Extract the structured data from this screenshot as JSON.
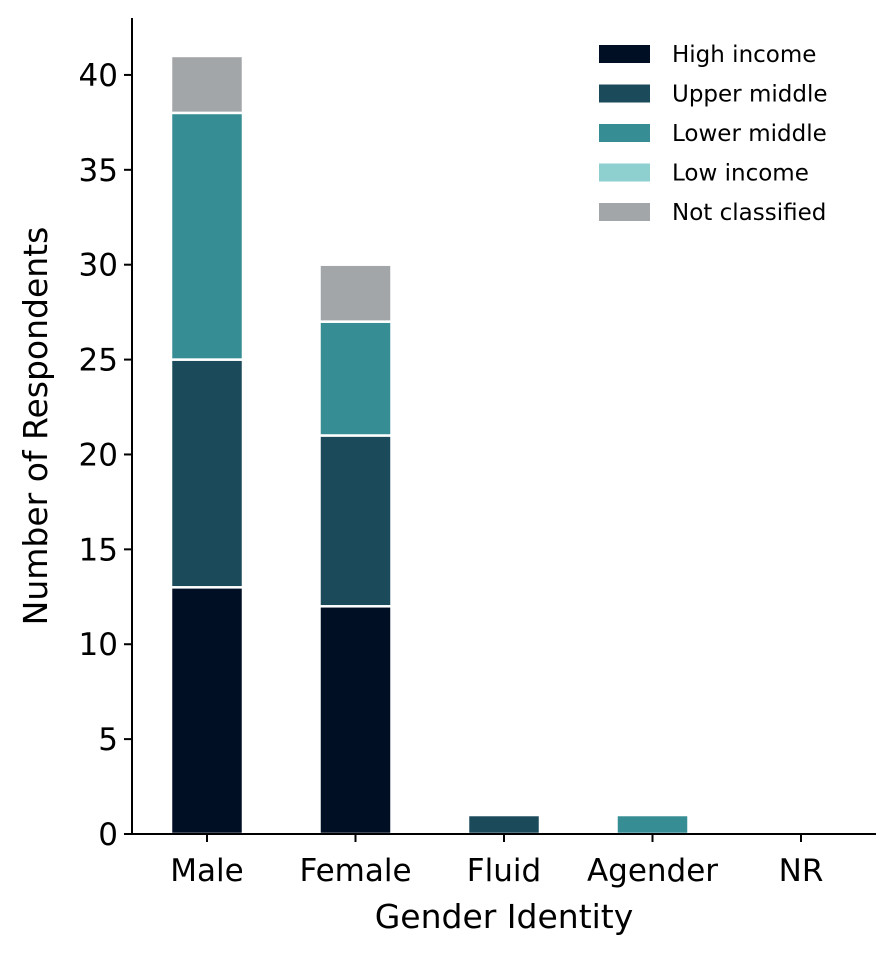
{
  "chart_data": {
    "type": "bar",
    "stacked": true,
    "title": "",
    "xlabel": "Gender Identity",
    "ylabel": "Number of Respondents",
    "categories": [
      "Male",
      "Female",
      "Fluid",
      "Agender",
      "NR"
    ],
    "ylim": [
      0,
      43
    ],
    "yticks": [
      0,
      5,
      10,
      15,
      20,
      25,
      30,
      35,
      40
    ],
    "grid": false,
    "legend_position": "top-right",
    "series": [
      {
        "name": "High income",
        "color": "#000f24",
        "values": [
          13,
          12,
          0,
          0,
          0
        ]
      },
      {
        "name": "Upper middle",
        "color": "#1b4a5a",
        "values": [
          12,
          9,
          1,
          0,
          0
        ]
      },
      {
        "name": "Lower middle",
        "color": "#368d94",
        "values": [
          13,
          6,
          0,
          1,
          0
        ]
      },
      {
        "name": "Low income",
        "color": "#8ecfcf",
        "values": [
          0,
          0,
          0,
          0,
          0
        ]
      },
      {
        "name": "Not classified",
        "color": "#a3a6a9",
        "values": [
          3,
          3,
          0,
          0,
          0
        ]
      }
    ]
  }
}
